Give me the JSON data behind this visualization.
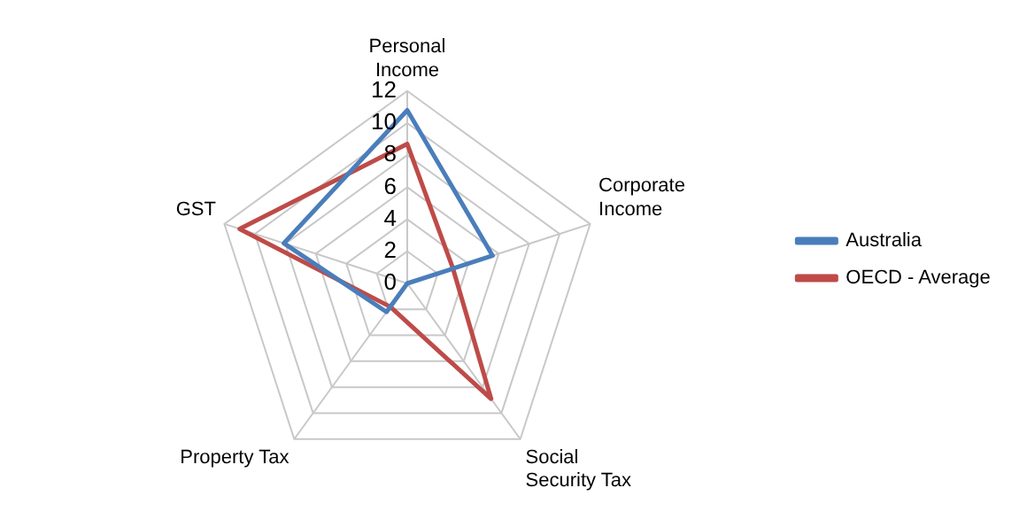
{
  "chart_data": {
    "type": "radar",
    "categories": [
      "Personal Income",
      "Corporate Income",
      "Social Security Tax",
      "Property Tax",
      "GST"
    ],
    "series": [
      {
        "name": "Australia",
        "color": "#4a7ebb",
        "values": [
          10.8,
          5.6,
          0,
          2.2,
          8.1
        ]
      },
      {
        "name": "OECD - Average",
        "color": "#be4b48",
        "values": [
          8.7,
          3.0,
          8.9,
          1.8,
          11.0
        ]
      }
    ],
    "ylim": [
      0,
      12
    ],
    "yticks": [
      0,
      2,
      4,
      6,
      8,
      10,
      12
    ],
    "grid": true,
    "legend": "right",
    "marker": "none"
  }
}
